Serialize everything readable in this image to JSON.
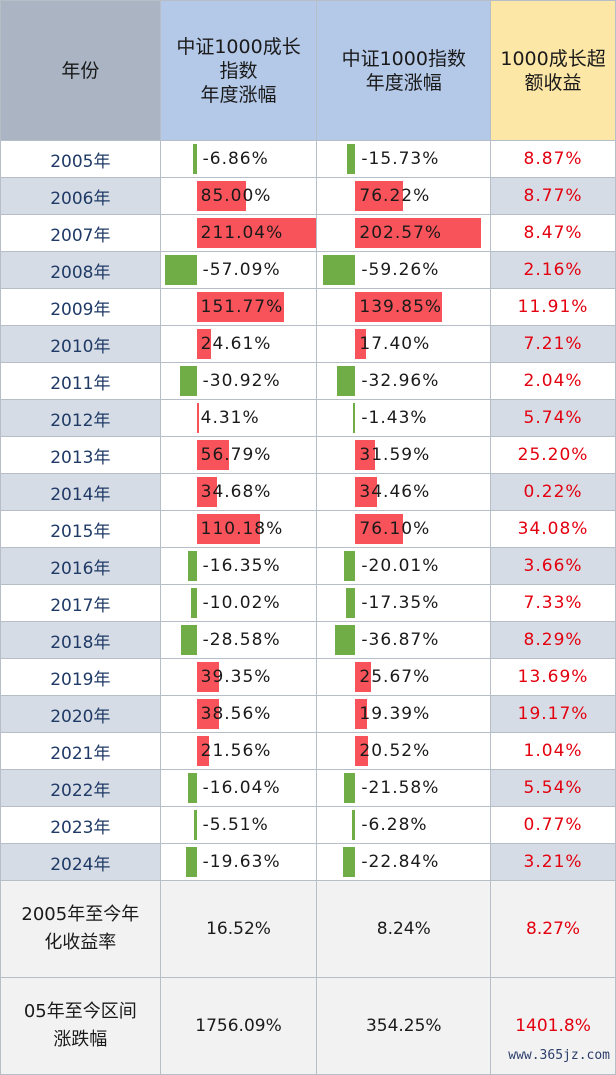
{
  "header": {
    "year": "年份",
    "growth_lines": [
      "中证1000成长",
      "指数",
      "年度涨幅"
    ],
    "index_lines": [
      "中证1000指数",
      "年度涨幅"
    ],
    "excess_lines": [
      "1000成长超",
      "额收益"
    ]
  },
  "rows": [
    {
      "year": "2005年",
      "growth": "-6.86%",
      "growth_value": -6.86,
      "index": "-15.73%",
      "index_value": -15.73,
      "excess": "8.87%"
    },
    {
      "year": "2006年",
      "growth": "85.00%",
      "growth_value": 85.0,
      "index": "76.22%",
      "index_value": 76.22,
      "excess": "8.77%"
    },
    {
      "year": "2007年",
      "growth": "211.04%",
      "growth_value": 211.04,
      "index": "202.57%",
      "index_value": 202.57,
      "excess": "8.47%"
    },
    {
      "year": "2008年",
      "growth": "-57.09%",
      "growth_value": -57.09,
      "index": "-59.26%",
      "index_value": -59.26,
      "excess": "2.16%"
    },
    {
      "year": "2009年",
      "growth": "151.77%",
      "growth_value": 151.77,
      "index": "139.85%",
      "index_value": 139.85,
      "excess": "11.91%"
    },
    {
      "year": "2010年",
      "growth": "24.61%",
      "growth_value": 24.61,
      "index": "17.40%",
      "index_value": 17.4,
      "excess": "7.21%"
    },
    {
      "year": "2011年",
      "growth": "-30.92%",
      "growth_value": -30.92,
      "index": "-32.96%",
      "index_value": -32.96,
      "excess": "2.04%"
    },
    {
      "year": "2012年",
      "growth": "4.31%",
      "growth_value": 4.31,
      "index": "-1.43%",
      "index_value": -1.43,
      "excess": "5.74%"
    },
    {
      "year": "2013年",
      "growth": "56.79%",
      "growth_value": 56.79,
      "index": "31.59%",
      "index_value": 31.59,
      "excess": "25.20%"
    },
    {
      "year": "2014年",
      "growth": "34.68%",
      "growth_value": 34.68,
      "index": "34.46%",
      "index_value": 34.46,
      "excess": "0.22%"
    },
    {
      "year": "2015年",
      "growth": "110.18%",
      "growth_value": 110.18,
      "index": "76.10%",
      "index_value": 76.1,
      "excess": "34.08%"
    },
    {
      "year": "2016年",
      "growth": "-16.35%",
      "growth_value": -16.35,
      "index": "-20.01%",
      "index_value": -20.01,
      "excess": "3.66%"
    },
    {
      "year": "2017年",
      "growth": "-10.02%",
      "growth_value": -10.02,
      "index": "-17.35%",
      "index_value": -17.35,
      "excess": "7.33%"
    },
    {
      "year": "2018年",
      "growth": "-28.58%",
      "growth_value": -28.58,
      "index": "-36.87%",
      "index_value": -36.87,
      "excess": "8.29%"
    },
    {
      "year": "2019年",
      "growth": "39.35%",
      "growth_value": 39.35,
      "index": "25.67%",
      "index_value": 25.67,
      "excess": "13.69%"
    },
    {
      "year": "2020年",
      "growth": "38.56%",
      "growth_value": 38.56,
      "index": "19.39%",
      "index_value": 19.39,
      "excess": "19.17%"
    },
    {
      "year": "2021年",
      "growth": "21.56%",
      "growth_value": 21.56,
      "index": "20.52%",
      "index_value": 20.52,
      "excess": "1.04%"
    },
    {
      "year": "2022年",
      "growth": "-16.04%",
      "growth_value": -16.04,
      "index": "-21.58%",
      "index_value": -21.58,
      "excess": "5.54%"
    },
    {
      "year": "2023年",
      "growth": "-5.51%",
      "growth_value": -5.51,
      "index": "-6.28%",
      "index_value": -6.28,
      "excess": "0.77%"
    },
    {
      "year": "2024年",
      "growth": "-19.63%",
      "growth_value": -19.63,
      "index": "-22.84%",
      "index_value": -22.84,
      "excess": "3.21%"
    }
  ],
  "summary": {
    "annualized_lines": [
      "2005年至今年",
      "化收益率"
    ],
    "annualized_growth": "16.52%",
    "annualized_index": "8.24%",
    "annualized_excess": "8.27%",
    "cumulative_lines": [
      "05年至今区间",
      "涨跌幅"
    ],
    "cumulative_growth": "1756.09%",
    "cumulative_index": "354.25%",
    "cumulative_excess": "1401.8%"
  },
  "watermark": "www.365jz.com",
  "colors": {
    "positive_bar": "#f8535a",
    "negative_bar": "#70ad47",
    "excess_text": "#e3000f"
  }
}
